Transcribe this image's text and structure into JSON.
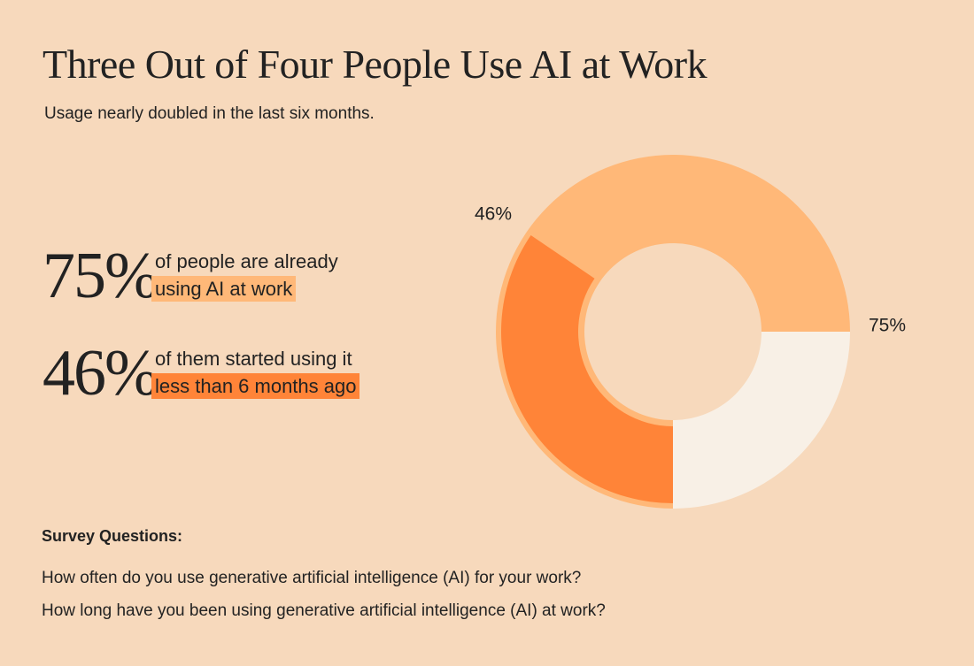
{
  "chart_data": {
    "type": "donut",
    "title": "Three Out of Four People Use AI at Work",
    "subtitle": "Usage nearly doubled in the last six months.",
    "values": [
      75,
      46
    ],
    "value_labels": [
      "75%",
      "46%"
    ],
    "ylim": [
      0,
      100
    ],
    "colors": [
      "#ffb878",
      "#ff8438"
    ],
    "remainder_color": "#f8f0e6",
    "statements": [
      {
        "text": "of people are already",
        "highlight": "using AI at work"
      },
      {
        "text": "of them started using it",
        "highlight": "less than 6 months ago"
      }
    ],
    "survey": {
      "heading": "Survey Questions:",
      "questions": [
        "How often do you use generative artificial intelligence (AI) for your work?",
        "How long have you been using generative artificial intelligence (AI) at work?"
      ]
    }
  }
}
